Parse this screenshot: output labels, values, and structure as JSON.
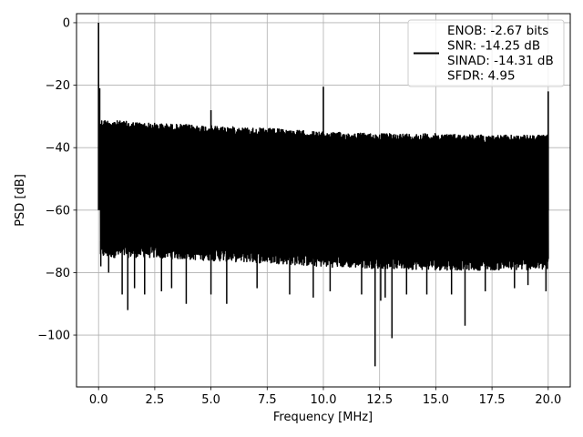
{
  "chart_data": {
    "type": "line",
    "xlabel": "Frequency [MHz]",
    "ylabel": "PSD [dB]",
    "xlim": [
      -0.98,
      20.98
    ],
    "ylim": [
      -116.6,
      2.9
    ],
    "xticks": [
      0,
      2.5,
      5,
      7.5,
      10,
      12.5,
      15,
      17.5,
      20
    ],
    "xtick_labels": [
      "0.0",
      "2.5",
      "5.0",
      "7.5",
      "10.0",
      "12.5",
      "15.0",
      "17.5",
      "20.0"
    ],
    "yticks": [
      0,
      -20,
      -40,
      -60,
      -80,
      -100
    ],
    "ytick_labels": [
      "0",
      "−20",
      "−40",
      "−60",
      "−80",
      "−100"
    ],
    "grid": true,
    "legend_position": "top-right",
    "legend": {
      "lines": [
        "ENOB: -2.67 bits",
        "SNR: -14.25 dB",
        "SINAD: -14.31 dB",
        "SFDR: 4.95"
      ]
    },
    "series": [
      {
        "color": "#000000",
        "noise_floor": {
          "x": [
            0.08,
            2,
            5,
            8,
            10,
            12.5,
            15,
            17.5,
            20
          ],
          "upper": [
            -31,
            -32,
            -33,
            -34,
            -35,
            -35.5,
            -35.5,
            -36,
            -36
          ],
          "lower": [
            -74,
            -74,
            -75,
            -76,
            -77,
            -77.5,
            -78,
            -78,
            -78
          ]
        },
        "peaks": [
          {
            "x": 0.0,
            "y": 0
          },
          {
            "x": 0.05,
            "y": -21
          },
          {
            "x": 5.0,
            "y": -28
          },
          {
            "x": 10.0,
            "y": -20.5
          },
          {
            "x": 20.0,
            "y": -22
          }
        ],
        "dips": [
          {
            "x": 0.1,
            "y": -78
          },
          {
            "x": 0.45,
            "y": -80
          },
          {
            "x": 1.05,
            "y": -87
          },
          {
            "x": 1.3,
            "y": -92
          },
          {
            "x": 1.6,
            "y": -85
          },
          {
            "x": 2.05,
            "y": -87
          },
          {
            "x": 2.8,
            "y": -86
          },
          {
            "x": 3.25,
            "y": -85
          },
          {
            "x": 3.9,
            "y": -90
          },
          {
            "x": 5.0,
            "y": -87
          },
          {
            "x": 5.7,
            "y": -90
          },
          {
            "x": 7.05,
            "y": -85
          },
          {
            "x": 8.5,
            "y": -87
          },
          {
            "x": 9.55,
            "y": -88
          },
          {
            "x": 10.3,
            "y": -86
          },
          {
            "x": 11.7,
            "y": -87
          },
          {
            "x": 12.3,
            "y": -110
          },
          {
            "x": 12.55,
            "y": -89
          },
          {
            "x": 12.75,
            "y": -88
          },
          {
            "x": 13.05,
            "y": -101
          },
          {
            "x": 13.7,
            "y": -87
          },
          {
            "x": 14.6,
            "y": -87
          },
          {
            "x": 15.7,
            "y": -87
          },
          {
            "x": 16.3,
            "y": -97
          },
          {
            "x": 17.2,
            "y": -86
          },
          {
            "x": 18.5,
            "y": -85
          },
          {
            "x": 19.1,
            "y": -84
          },
          {
            "x": 19.9,
            "y": -86
          }
        ]
      }
    ]
  }
}
